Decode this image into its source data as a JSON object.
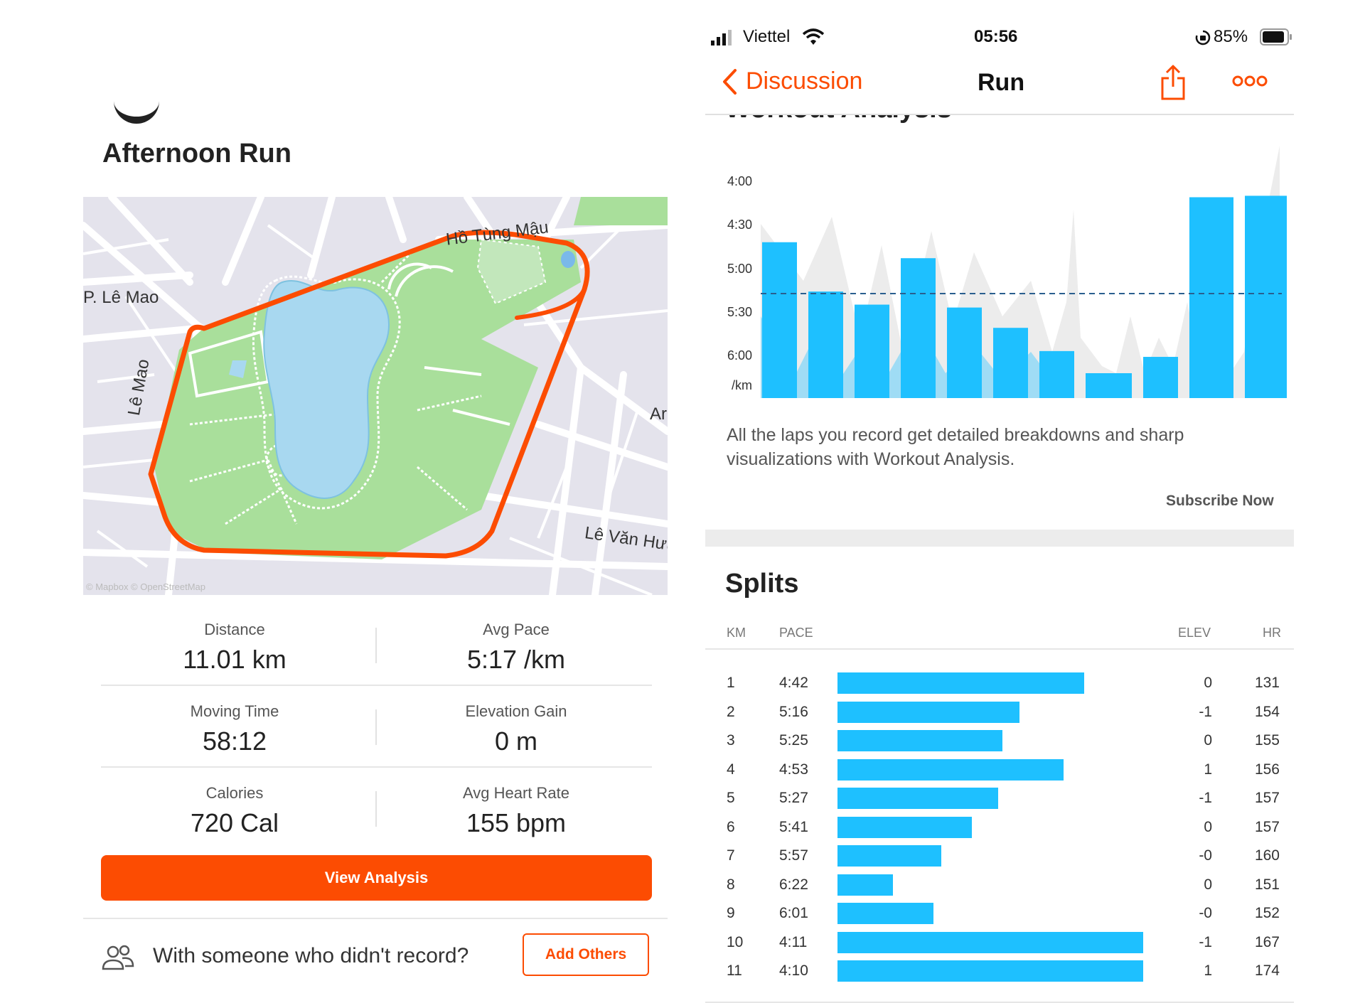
{
  "left": {
    "activity_title": "Afternoon Run",
    "map": {
      "street_labels": [
        "Hồ Tùng Mậu",
        "P. Lê Mao",
        "Lê Mao",
        "Ar",
        "Lê Văn Hưu"
      ],
      "attribution": "© Mapbox © OpenStreetMap",
      "route_color": "#fc4c02"
    },
    "stats": [
      {
        "label": "Distance",
        "value": "11.01 km"
      },
      {
        "label": "Avg Pace",
        "value": "5:17 /km"
      },
      {
        "label": "Moving Time",
        "value": "58:12"
      },
      {
        "label": "Elevation Gain",
        "value": "0 m"
      },
      {
        "label": "Calories",
        "value": "720 Cal"
      },
      {
        "label": "Avg Heart Rate",
        "value": "155 bpm"
      }
    ],
    "view_analysis_label": "View Analysis",
    "with_someone_text": "With someone who didn't record?",
    "add_others_label": "Add Others"
  },
  "right": {
    "status_bar": {
      "carrier": "Viettel",
      "time": "05:56",
      "battery": "85%"
    },
    "nav": {
      "back_label": "Discussion",
      "title": "Run"
    },
    "section_heading_cut": "Workout Analysis",
    "workout_chart": {
      "y_ticks": [
        "4:00",
        "4:30",
        "5:00",
        "5:30",
        "6:00",
        "/km"
      ],
      "laps_pace": [
        "4:42",
        "5:16",
        "5:25",
        "4:53",
        "5:27",
        "5:41",
        "5:57",
        "6:22",
        "6:01",
        "4:11",
        "4:10"
      ],
      "avg_pace": "5:17",
      "bar_color": "#1ec0ff"
    },
    "workout_desc": "All the laps you record get detailed breakdowns and sharp visualizations with Workout Analysis.",
    "subscribe_label": "Subscribe Now",
    "splits": {
      "title": "Splits",
      "headers": {
        "km": "KM",
        "pace": "PACE",
        "elev": "ELEV",
        "hr": "HR"
      },
      "rows": [
        {
          "km": "1",
          "pace": "4:42",
          "elev": "0",
          "hr": "131"
        },
        {
          "km": "2",
          "pace": "5:16",
          "elev": "-1",
          "hr": "154"
        },
        {
          "km": "3",
          "pace": "5:25",
          "elev": "0",
          "hr": "155"
        },
        {
          "km": "4",
          "pace": "4:53",
          "elev": "1",
          "hr": "156"
        },
        {
          "km": "5",
          "pace": "5:27",
          "elev": "-1",
          "hr": "157"
        },
        {
          "km": "6",
          "pace": "5:41",
          "elev": "0",
          "hr": "157"
        },
        {
          "km": "7",
          "pace": "5:57",
          "elev": "-0",
          "hr": "160"
        },
        {
          "km": "8",
          "pace": "6:22",
          "elev": "0",
          "hr": "151"
        },
        {
          "km": "9",
          "pace": "6:01",
          "elev": "-0",
          "hr": "152"
        },
        {
          "km": "10",
          "pace": "4:11",
          "elev": "-1",
          "hr": "167"
        },
        {
          "km": "11",
          "pace": "4:10",
          "elev": "1",
          "hr": "174"
        }
      ]
    }
  }
}
